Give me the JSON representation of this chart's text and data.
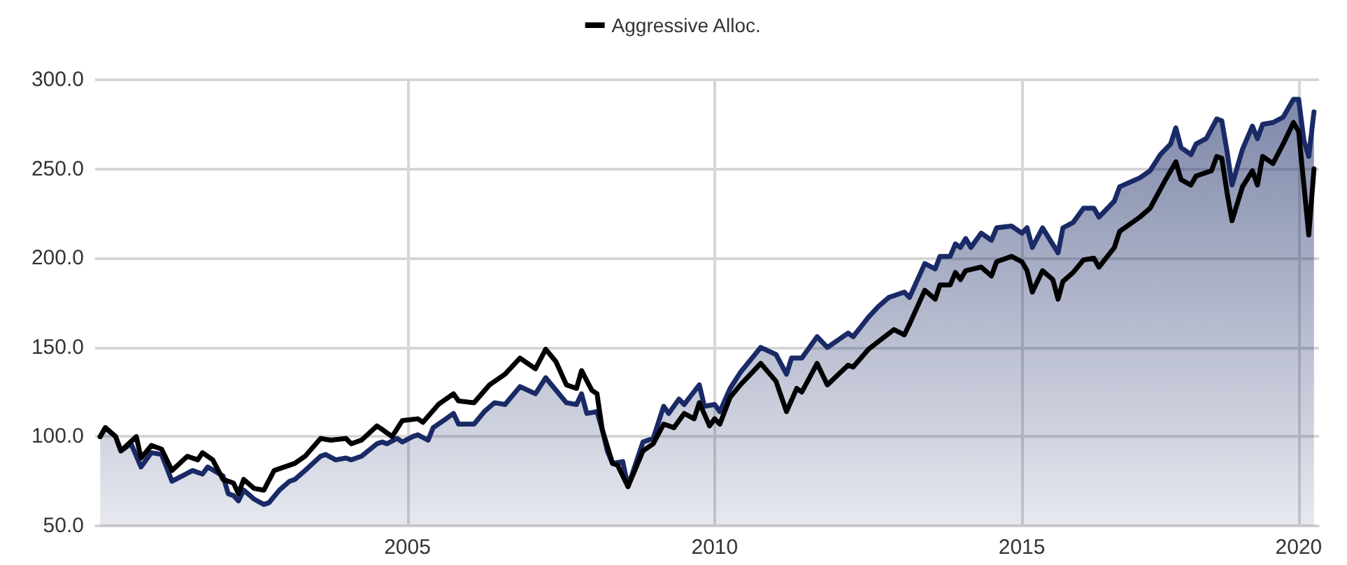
{
  "chart_data": {
    "type": "line",
    "xlim": [
      "2000-06",
      "2020-05"
    ],
    "xticks": [
      {
        "value": "2005-07",
        "label": "2005"
      },
      {
        "value": "2010-07",
        "label": "2010"
      },
      {
        "value": "2015-07",
        "label": "2015"
      },
      {
        "value": "2020-01",
        "label": "2020"
      }
    ],
    "ylim": [
      50,
      300
    ],
    "yticks": [
      {
        "value": 50,
        "label": "50.0"
      },
      {
        "value": 100,
        "label": "100.0"
      },
      {
        "value": 150,
        "label": "150.0"
      },
      {
        "value": 200,
        "label": "200.0"
      },
      {
        "value": 250,
        "label": "250.0"
      },
      {
        "value": 300,
        "label": "300.0"
      }
    ],
    "grid": true,
    "legend": "top",
    "marker": "none",
    "line_style": "solid",
    "series": [
      {
        "type": "area",
        "color": "#1a2a66",
        "x": [
          "2000-07",
          "2000-08",
          "2000-10",
          "2000-11",
          "2001-01",
          "2001-03",
          "2001-05",
          "2001-07",
          "2001-09",
          "2001-11",
          "2002-01",
          "2002-03",
          "2002-04",
          "2002-07",
          "2002-08",
          "2002-09",
          "2002-10",
          "2002-11",
          "2003-01",
          "2003-03",
          "2003-04",
          "2003-06",
          "2003-08",
          "2003-09",
          "2003-11",
          "2004-02",
          "2004-03",
          "2004-05",
          "2004-07",
          "2004-08",
          "2004-10",
          "2005-01",
          "2005-02",
          "2005-03",
          "2005-05",
          "2005-06",
          "2005-08",
          "2005-09",
          "2005-11",
          "2005-12",
          "2006-02",
          "2006-04",
          "2006-05",
          "2006-08",
          "2006-10",
          "2006-12",
          "2007-02",
          "2007-05",
          "2007-08",
          "2007-10",
          "2007-12",
          "2008-02",
          "2008-04",
          "2008-05",
          "2008-06",
          "2008-08",
          "2008-09",
          "2008-10",
          "2008-11",
          "2009-01",
          "2009-02",
          "2009-05",
          "2009-07",
          "2009-09",
          "2009-10",
          "2009-12",
          "2010-01",
          "2010-04",
          "2010-05",
          "2010-07",
          "2010-08",
          "2010-10",
          "2010-12",
          "2011-04",
          "2011-07",
          "2011-09",
          "2011-10",
          "2011-12",
          "2012-03",
          "2012-05",
          "2012-09",
          "2012-10",
          "2013-01",
          "2013-03",
          "2013-05",
          "2013-08",
          "2013-09",
          "2013-12",
          "2014-02",
          "2014-03",
          "2014-05",
          "2014-06",
          "2014-07",
          "2014-08",
          "2014-09",
          "2014-11",
          "2015-01",
          "2015-02",
          "2015-05",
          "2015-07",
          "2015-08",
          "2015-09",
          "2015-11",
          "2016-02",
          "2016-03",
          "2016-05",
          "2016-07",
          "2016-09",
          "2016-10",
          "2017-01",
          "2017-02",
          "2017-06",
          "2017-08",
          "2017-10",
          "2017-12",
          "2018-01",
          "2018-02",
          "2018-04",
          "2018-05",
          "2018-07",
          "2018-09",
          "2018-10",
          "2018-11",
          "2018-12",
          "2019-02",
          "2019-04",
          "2019-05",
          "2019-06",
          "2019-08",
          "2019-10",
          "2019-12",
          "2020-01",
          "2020-02",
          "2020-03",
          "2020-04"
        ],
        "values": [
          100,
          105,
          100,
          92,
          96,
          83,
          91,
          90,
          75,
          78,
          81,
          79,
          83,
          78,
          68,
          67,
          64,
          70,
          65,
          62,
          63,
          70,
          75,
          76,
          81,
          89,
          90,
          87,
          88,
          87,
          89,
          96,
          97,
          96,
          99,
          97,
          100,
          101,
          98,
          105,
          109,
          113,
          107,
          107,
          114,
          119,
          118,
          128,
          124,
          133,
          126,
          119,
          118,
          124,
          113,
          114,
          104,
          92,
          85,
          86,
          72,
          97,
          99,
          117,
          113,
          121,
          118,
          129,
          117,
          118,
          114,
          127,
          136,
          150,
          146,
          135,
          144,
          144,
          156,
          150,
          158,
          156,
          167,
          173,
          178,
          181,
          178,
          197,
          194,
          201,
          201,
          208,
          206,
          211,
          206,
          214,
          210,
          217,
          218,
          214,
          217,
          206,
          217,
          203,
          217,
          220,
          228,
          228,
          223,
          232,
          240,
          245,
          249,
          258,
          264,
          273,
          262,
          258,
          264,
          267,
          278,
          277,
          260,
          241,
          261,
          274,
          267,
          275,
          276,
          279,
          289,
          289,
          266,
          257,
          282
        ]
      },
      {
        "type": "line",
        "name": "Aggressive Alloc.",
        "color": "#000000",
        "x": [
          "2000-07",
          "2000-08",
          "2000-10",
          "2000-11",
          "2001-02",
          "2001-03",
          "2001-05",
          "2001-07",
          "2001-09",
          "2001-12",
          "2002-02",
          "2002-03",
          "2002-05",
          "2002-07",
          "2002-09",
          "2002-10",
          "2002-11",
          "2003-01",
          "2003-03",
          "2003-05",
          "2003-09",
          "2003-11",
          "2004-02",
          "2004-04",
          "2004-07",
          "2004-08",
          "2004-10",
          "2005-01",
          "2005-02",
          "2005-04",
          "2005-06",
          "2005-09",
          "2005-10",
          "2006-01",
          "2006-04",
          "2006-05",
          "2006-08",
          "2006-11",
          "2007-02",
          "2007-05",
          "2007-08",
          "2007-10",
          "2007-12",
          "2008-02",
          "2008-04",
          "2008-05",
          "2008-07",
          "2008-08",
          "2008-09",
          "2008-11",
          "2008-12",
          "2009-02",
          "2009-05",
          "2009-07",
          "2009-09",
          "2009-11",
          "2010-01",
          "2010-03",
          "2010-04",
          "2010-06",
          "2010-07",
          "2010-08",
          "2010-10",
          "2010-12",
          "2011-04",
          "2011-07",
          "2011-09",
          "2011-11",
          "2011-12",
          "2012-03",
          "2012-05",
          "2012-09",
          "2012-10",
          "2013-01",
          "2013-06",
          "2013-08",
          "2013-09",
          "2013-12",
          "2014-02",
          "2014-03",
          "2014-05",
          "2014-06",
          "2014-07",
          "2014-08",
          "2014-11",
          "2015-01",
          "2015-02",
          "2015-05",
          "2015-07",
          "2015-08",
          "2015-09",
          "2015-11",
          "2016-01",
          "2016-02",
          "2016-03",
          "2016-05",
          "2016-07",
          "2016-09",
          "2016-10",
          "2017-01",
          "2017-02",
          "2017-06",
          "2017-08",
          "2017-11",
          "2018-01",
          "2018-02",
          "2018-04",
          "2018-05",
          "2018-08",
          "2018-09",
          "2018-10",
          "2018-11",
          "2018-12",
          "2019-02",
          "2019-04",
          "2019-05",
          "2019-06",
          "2019-08",
          "2019-10",
          "2019-12",
          "2020-01",
          "2020-03",
          "2020-04"
        ],
        "values": [
          100,
          105,
          100,
          92,
          100,
          88,
          95,
          93,
          81,
          89,
          87,
          91,
          87,
          76,
          74,
          68,
          76,
          71,
          70,
          81,
          85,
          89,
          99,
          98,
          99,
          96,
          98,
          106,
          104,
          100,
          109,
          110,
          108,
          118,
          124,
          120,
          119,
          129,
          135,
          144,
          138,
          149,
          142,
          129,
          127,
          137,
          126,
          124,
          104,
          85,
          84,
          72,
          92,
          96,
          107,
          105,
          113,
          110,
          119,
          106,
          110,
          107,
          122,
          129,
          141,
          131,
          114,
          127,
          125,
          141,
          129,
          140,
          139,
          149,
          160,
          157,
          163,
          182,
          177,
          185,
          185,
          192,
          188,
          193,
          195,
          190,
          198,
          201,
          198,
          193,
          181,
          193,
          188,
          177,
          187,
          192,
          199,
          200,
          195,
          206,
          215,
          223,
          228,
          244,
          254,
          244,
          241,
          246,
          249,
          257,
          256,
          237,
          221,
          240,
          249,
          241,
          257,
          253,
          264,
          276,
          271,
          213,
          250
        ]
      }
    ]
  }
}
